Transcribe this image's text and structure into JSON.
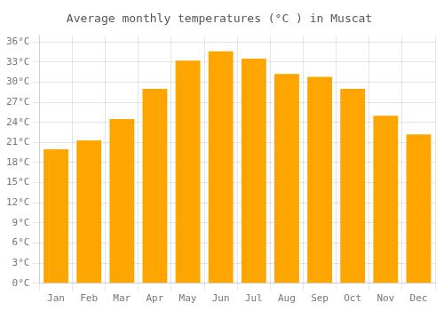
{
  "chart_data": {
    "type": "bar",
    "title": "Average monthly temperatures (°C ) in Muscat",
    "categories": [
      "Jan",
      "Feb",
      "Mar",
      "Apr",
      "May",
      "Jun",
      "Jul",
      "Aug",
      "Sep",
      "Oct",
      "Nov",
      "Dec"
    ],
    "values": [
      20.0,
      21.3,
      24.5,
      29.0,
      33.2,
      34.6,
      33.5,
      31.2,
      30.8,
      29.0,
      25.0,
      22.2
    ],
    "color": "#FFA500",
    "ylim": [
      0,
      37
    ],
    "yticks": [
      {
        "value": 0,
        "label": "0°C"
      },
      {
        "value": 3,
        "label": "3°C"
      },
      {
        "value": 6,
        "label": "6°C"
      },
      {
        "value": 9,
        "label": "9°C"
      },
      {
        "value": 12,
        "label": "12°C"
      },
      {
        "value": 15,
        "label": "15°C"
      },
      {
        "value": 18,
        "label": "18°C"
      },
      {
        "value": 21,
        "label": "21°C"
      },
      {
        "value": 24,
        "label": "24°C"
      },
      {
        "value": 27,
        "label": "27°C"
      },
      {
        "value": 30,
        "label": "30°C"
      },
      {
        "value": 33,
        "label": "33°C"
      },
      {
        "value": 36,
        "label": "36°C"
      }
    ],
    "grid": true
  }
}
